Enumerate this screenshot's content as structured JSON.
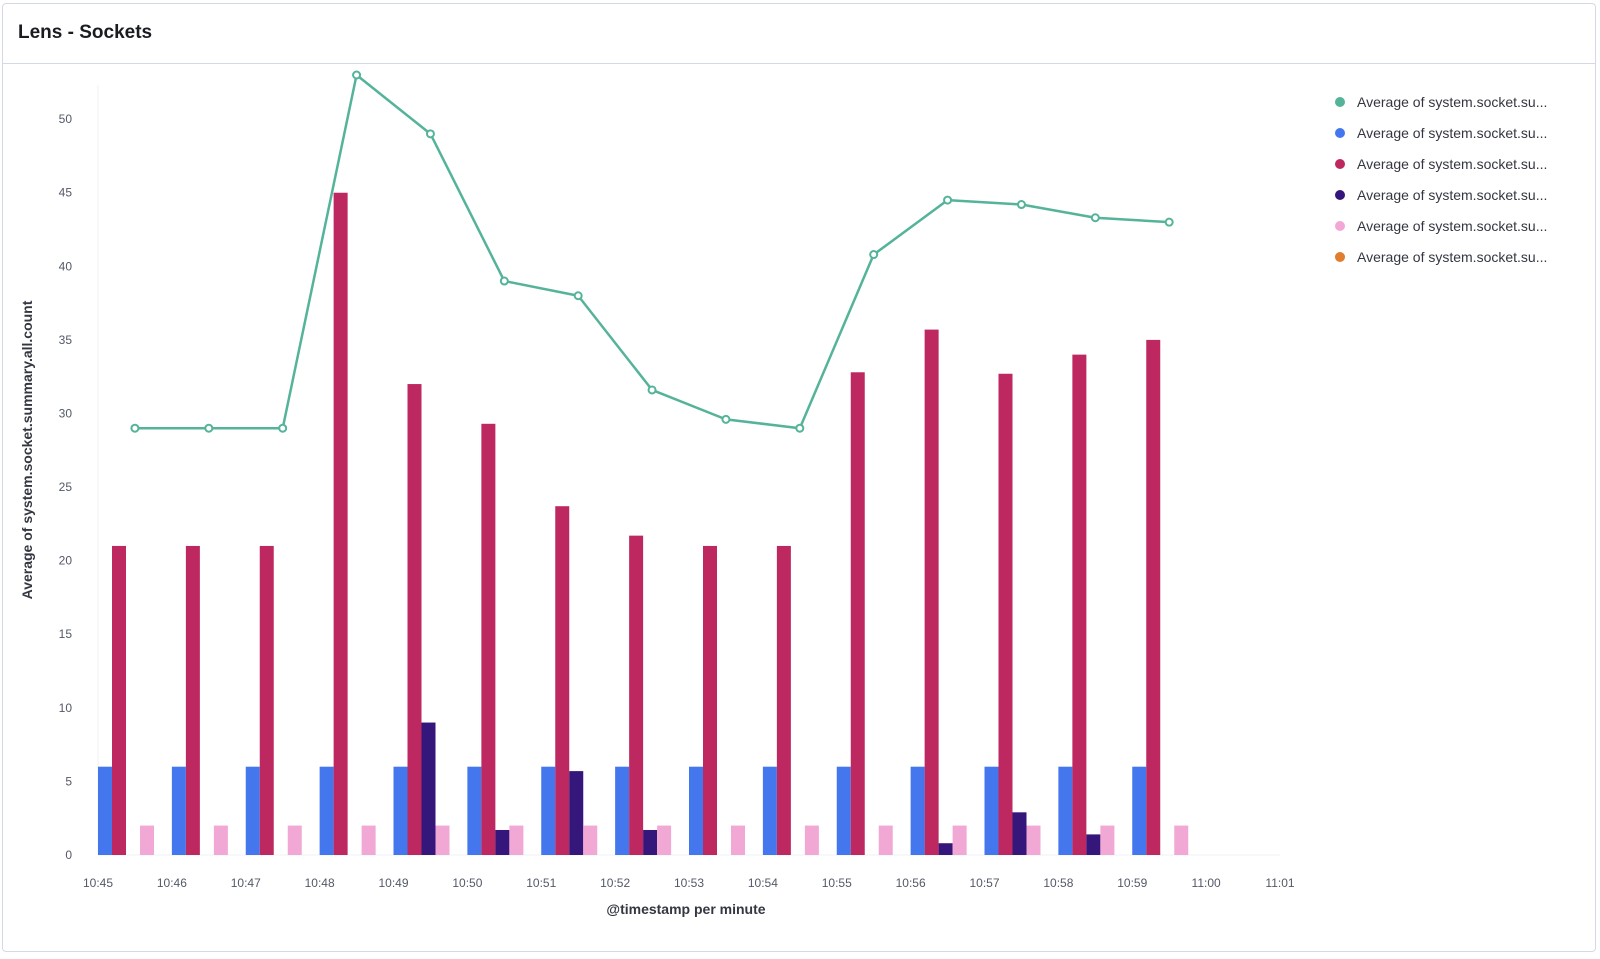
{
  "panel": {
    "title": "Lens - Sockets"
  },
  "chart_data": {
    "type": "bar",
    "categories": [
      "10:45",
      "10:46",
      "10:47",
      "10:48",
      "10:49",
      "10:50",
      "10:51",
      "10:52",
      "10:53",
      "10:54",
      "10:55",
      "10:56",
      "10:57",
      "10:58",
      "10:59"
    ],
    "x_ticks": [
      "10:45",
      "10:46",
      "10:47",
      "10:48",
      "10:49",
      "10:50",
      "10:51",
      "10:52",
      "10:53",
      "10:54",
      "10:55",
      "10:56",
      "10:57",
      "10:58",
      "10:59",
      "11:00",
      "11:01"
    ],
    "xlabel": "@timestamp per minute",
    "ylabel": "Average of system.socket.summary.all.count",
    "ylim": [
      0,
      53
    ],
    "y_ticks": [
      0,
      5,
      10,
      15,
      20,
      25,
      30,
      35,
      40,
      45,
      50
    ],
    "legend_position": "top-right",
    "series": [
      {
        "name": "Average of system.socket.su...",
        "kind": "line",
        "color": "#54b399",
        "values": [
          29,
          29,
          29,
          53,
          49,
          39,
          38,
          31.6,
          29.6,
          29,
          40.8,
          44.5,
          44.2,
          43.3,
          43
        ]
      },
      {
        "name": "Average of system.socket.su...",
        "kind": "bar",
        "color": "#4477ee",
        "values": [
          6,
          6,
          6,
          6,
          6,
          6,
          6,
          6,
          6,
          6,
          6,
          6,
          6,
          6,
          6
        ]
      },
      {
        "name": "Average of system.socket.su...",
        "kind": "bar",
        "color": "#bd2861",
        "values": [
          21,
          21,
          21,
          45,
          32,
          29.3,
          23.7,
          21.7,
          21,
          21,
          32.8,
          35.7,
          32.7,
          34,
          35
        ]
      },
      {
        "name": "Average of system.socket.su...",
        "kind": "bar",
        "color": "#35167a",
        "values": [
          0,
          0,
          0,
          0,
          9,
          1.7,
          5.7,
          1.7,
          0,
          0,
          0,
          0.8,
          2.9,
          1.4,
          0
        ]
      },
      {
        "name": "Average of system.socket.su...",
        "kind": "bar",
        "color": "#f2a8d5",
        "values": [
          2,
          2,
          2,
          2,
          2,
          2,
          2,
          2,
          2,
          2,
          2,
          2,
          2,
          2,
          2
        ]
      },
      {
        "name": "Average of system.socket.su...",
        "kind": "bar",
        "color": "#e07d2f",
        "values": [
          0,
          0,
          0,
          0,
          0,
          0,
          0,
          0,
          0,
          0,
          0,
          0,
          0,
          0,
          0
        ]
      }
    ]
  }
}
